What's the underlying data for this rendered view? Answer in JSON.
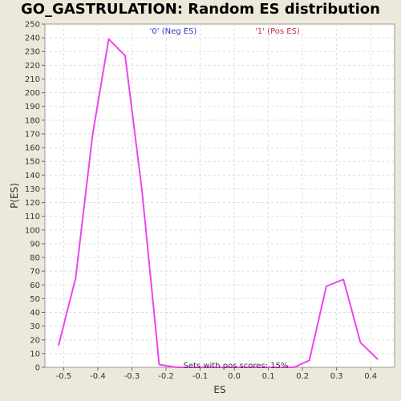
{
  "chart_data": {
    "type": "line",
    "title": "GO_GASTRULATION: Random ES distribution",
    "xlabel": "ES",
    "ylabel": "P(ES)",
    "xlim": [
      -0.555,
      0.47
    ],
    "ylim": [
      0,
      250
    ],
    "x_ticks": [
      -0.5,
      -0.4,
      -0.3,
      -0.2,
      -0.1,
      0.0,
      0.1,
      0.2,
      0.3,
      0.4
    ],
    "x_tick_labels": [
      "-0.5",
      "-0.4",
      "-0.3",
      "-0.2",
      "-0.1",
      "0.0",
      "0.1",
      "0.2",
      "0.3",
      "0.4"
    ],
    "y_ticks": [
      0,
      10,
      20,
      30,
      40,
      50,
      60,
      70,
      80,
      90,
      100,
      110,
      120,
      130,
      140,
      150,
      160,
      170,
      180,
      190,
      200,
      210,
      220,
      230,
      240,
      250
    ],
    "grid": true,
    "legend": [
      {
        "label": "'0' (Neg ES)",
        "color": "#3333cc"
      },
      {
        "label": "'1' (Pos ES)",
        "color": "#cc3333"
      }
    ],
    "annotation": "Sets with pos scores: 15%",
    "series_color": "#ee44ee",
    "series": [
      {
        "x": [
          -0.515,
          -0.465,
          -0.415,
          -0.368,
          -0.32,
          -0.27,
          -0.22,
          -0.17,
          -0.12,
          -0.07,
          -0.02,
          0.03,
          0.08,
          0.13,
          0.175,
          0.22,
          0.27,
          0.32,
          0.37,
          0.42
        ],
        "values": [
          16,
          65,
          170,
          239,
          227,
          128,
          2,
          0,
          0,
          0,
          0,
          0,
          0,
          0,
          0,
          5,
          59,
          64,
          18,
          6
        ]
      }
    ]
  }
}
